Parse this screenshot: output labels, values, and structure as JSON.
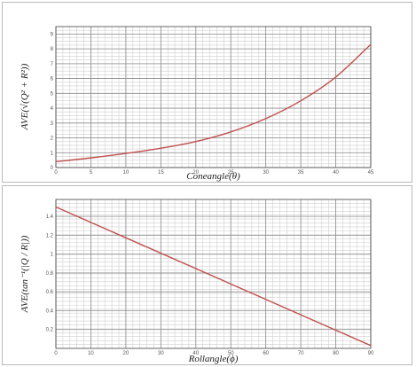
{
  "chart_data": [
    {
      "type": "line",
      "xlabel": "Coneangle(θ)",
      "ylabel": "AVE(√(Q² + R²))",
      "xlim": [
        0,
        45
      ],
      "ylim": [
        0,
        9.5
      ],
      "x_ticks": [
        "0",
        "5",
        "10",
        "15",
        "20",
        "25",
        "30",
        "35",
        "40",
        "45"
      ],
      "y_ticks": [
        "0",
        "1",
        "2",
        "3",
        "4",
        "5",
        "6",
        "7",
        "8",
        "9"
      ],
      "grid": true,
      "series": [
        {
          "color": "#c0504d",
          "x": [
            0,
            5,
            10,
            15,
            20,
            25,
            30,
            35,
            40,
            45
          ],
          "y": [
            0.4,
            0.65,
            0.95,
            1.3,
            1.75,
            2.4,
            3.3,
            4.5,
            6.1,
            8.3
          ]
        }
      ]
    },
    {
      "type": "line",
      "xlabel": "Rollangle(ϕ)",
      "ylabel": "AVE(tan⁻¹(|Q / R|))",
      "xlim": [
        0,
        90
      ],
      "ylim": [
        0,
        1.58
      ],
      "x_ticks": [
        "0",
        "10",
        "20",
        "30",
        "40",
        "50",
        "60",
        "70",
        "80",
        "90"
      ],
      "y_ticks": [
        "0.2",
        "0.4",
        "0.6",
        "0.8",
        "1",
        "1.2",
        "1.4"
      ],
      "grid": true,
      "series": [
        {
          "color": "#c0504d",
          "x": [
            0,
            90
          ],
          "y": [
            1.5,
            0.03
          ]
        }
      ]
    }
  ]
}
